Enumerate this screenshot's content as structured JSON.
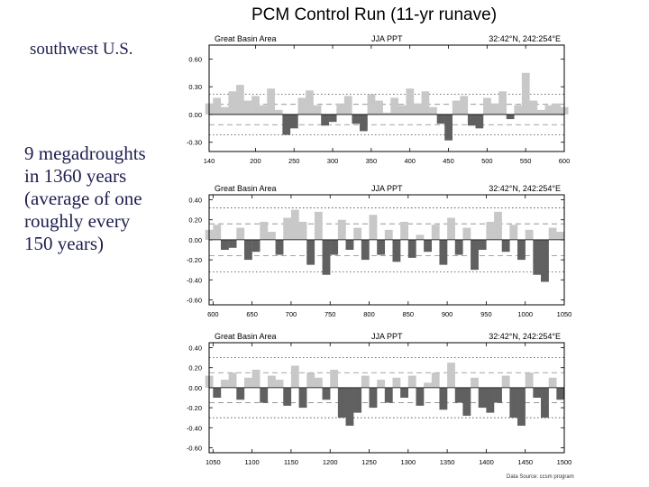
{
  "title": "PCM Control Run (11-yr runave)",
  "region_label": "southwest U.S.",
  "description": [
    "9 megadroughts",
    "in 1360 years",
    "(average of one",
    "roughly every",
    "150 years)"
  ],
  "footer": "Data Source: ccsm program",
  "colors": {
    "positive": "#c8c8c8",
    "negative": "#606060",
    "frame": "#000000"
  },
  "chart_data": [
    {
      "type": "bar",
      "header_left": "Great Basin Area",
      "header_center": "JJA PPT",
      "header_right": "32:42°N, 242:254°E",
      "xlim": [
        140,
        600
      ],
      "ylim": [
        -0.4,
        0.75
      ],
      "xticks": [
        "140",
        "200",
        "250",
        "300",
        "350",
        "400",
        "450",
        "500",
        "550",
        "600"
      ],
      "yticks": [
        "0.60",
        "0.30",
        "0.00",
        "-0.30"
      ],
      "dotted_lines": [
        0.22,
        -0.22
      ],
      "dashed_lines": [
        0.11,
        -0.11
      ],
      "x": [
        140,
        150,
        160,
        170,
        180,
        190,
        200,
        210,
        220,
        230,
        240,
        250,
        260,
        270,
        280,
        290,
        300,
        310,
        320,
        330,
        340,
        350,
        360,
        370,
        380,
        390,
        400,
        410,
        420,
        430,
        440,
        450,
        460,
        470,
        480,
        490,
        500,
        510,
        520,
        530,
        540,
        550,
        560,
        570,
        580,
        590,
        600
      ],
      "values": [
        0.12,
        0.18,
        0.08,
        0.25,
        0.32,
        0.15,
        0.2,
        0.1,
        0.28,
        0.05,
        -0.22,
        -0.15,
        0.18,
        0.26,
        0.1,
        -0.12,
        -0.08,
        0.12,
        0.2,
        -0.1,
        -0.18,
        0.22,
        0.15,
        0.02,
        0.18,
        0.1,
        0.28,
        0.12,
        0.25,
        0.08,
        -0.1,
        -0.28,
        0.15,
        0.2,
        -0.12,
        -0.15,
        0.18,
        0.12,
        0.25,
        -0.05,
        0.1,
        0.45,
        0.15,
        0.05,
        0.1,
        0.12,
        0.08
      ]
    },
    {
      "type": "bar",
      "header_left": "Great Basin Area",
      "header_center": "JJA PPT",
      "header_right": "32:42°N, 242:254°E",
      "xlim": [
        595,
        1050
      ],
      "ylim": [
        -0.65,
        0.45
      ],
      "xticks": [
        "600",
        "650",
        "700",
        "750",
        "800",
        "850",
        "900",
        "950",
        "1000",
        "1050"
      ],
      "yticks": [
        "0.40",
        "0.20",
        "0.00",
        "-0.20",
        "-0.40",
        "-0.60"
      ],
      "dotted_lines": [
        0.32,
        -0.32
      ],
      "dashed_lines": [
        0.16,
        -0.16
      ],
      "x": [
        595,
        605,
        615,
        625,
        635,
        645,
        655,
        665,
        675,
        685,
        695,
        705,
        715,
        725,
        735,
        745,
        755,
        765,
        775,
        785,
        795,
        805,
        815,
        825,
        835,
        845,
        855,
        865,
        875,
        885,
        895,
        905,
        915,
        925,
        935,
        945,
        955,
        965,
        975,
        985,
        995,
        1005,
        1015,
        1025,
        1035,
        1045
      ],
      "values": [
        0.1,
        0.15,
        -0.1,
        -0.08,
        0.12,
        -0.2,
        -0.12,
        0.18,
        0.08,
        -0.15,
        0.22,
        0.3,
        0.18,
        -0.25,
        0.28,
        -0.35,
        -0.15,
        0.2,
        -0.1,
        0.12,
        -0.2,
        0.25,
        -0.15,
        0.1,
        -0.22,
        0.18,
        -0.18,
        0.05,
        -0.12,
        0.15,
        -0.25,
        0.22,
        -0.15,
        0.12,
        -0.3,
        -0.1,
        0.18,
        0.28,
        -0.12,
        0.15,
        -0.2,
        0.1,
        -0.35,
        -0.42,
        0.12,
        0.08
      ]
    },
    {
      "type": "bar",
      "header_left": "Great Basin Area",
      "header_center": "JJA PPT",
      "header_right": "32:42°N, 242:254°E",
      "xlim": [
        1045,
        1500
      ],
      "ylim": [
        -0.65,
        0.45
      ],
      "xticks": [
        "1050",
        "1100",
        "1150",
        "1200",
        "1250",
        "1300",
        "1350",
        "1400",
        "1450",
        "1500"
      ],
      "yticks": [
        "0.40",
        "0.20",
        "0.00",
        "-0.20",
        "-0.40",
        "-0.60"
      ],
      "dotted_lines": [
        0.3,
        -0.3
      ],
      "dashed_lines": [
        0.15,
        -0.15
      ],
      "x": [
        1045,
        1055,
        1065,
        1075,
        1085,
        1095,
        1105,
        1115,
        1125,
        1135,
        1145,
        1155,
        1165,
        1175,
        1185,
        1195,
        1205,
        1215,
        1225,
        1235,
        1245,
        1255,
        1265,
        1275,
        1285,
        1295,
        1305,
        1315,
        1325,
        1335,
        1345,
        1355,
        1365,
        1375,
        1385,
        1395,
        1405,
        1415,
        1425,
        1435,
        1445,
        1455,
        1465,
        1475,
        1485,
        1495
      ],
      "values": [
        0.12,
        -0.1,
        0.08,
        0.15,
        -0.12,
        0.1,
        0.18,
        -0.15,
        0.12,
        0.08,
        -0.18,
        0.22,
        -0.2,
        0.15,
        0.1,
        -0.12,
        0.18,
        -0.3,
        -0.38,
        -0.25,
        0.12,
        -0.2,
        0.08,
        -0.15,
        0.1,
        -0.1,
        0.12,
        -0.18,
        0.05,
        0.15,
        -0.22,
        0.25,
        -0.15,
        -0.28,
        0.1,
        -0.2,
        -0.25,
        -0.15,
        0.12,
        -0.3,
        -0.38,
        0.15,
        -0.1,
        -0.3,
        0.1,
        -0.12
      ]
    }
  ]
}
